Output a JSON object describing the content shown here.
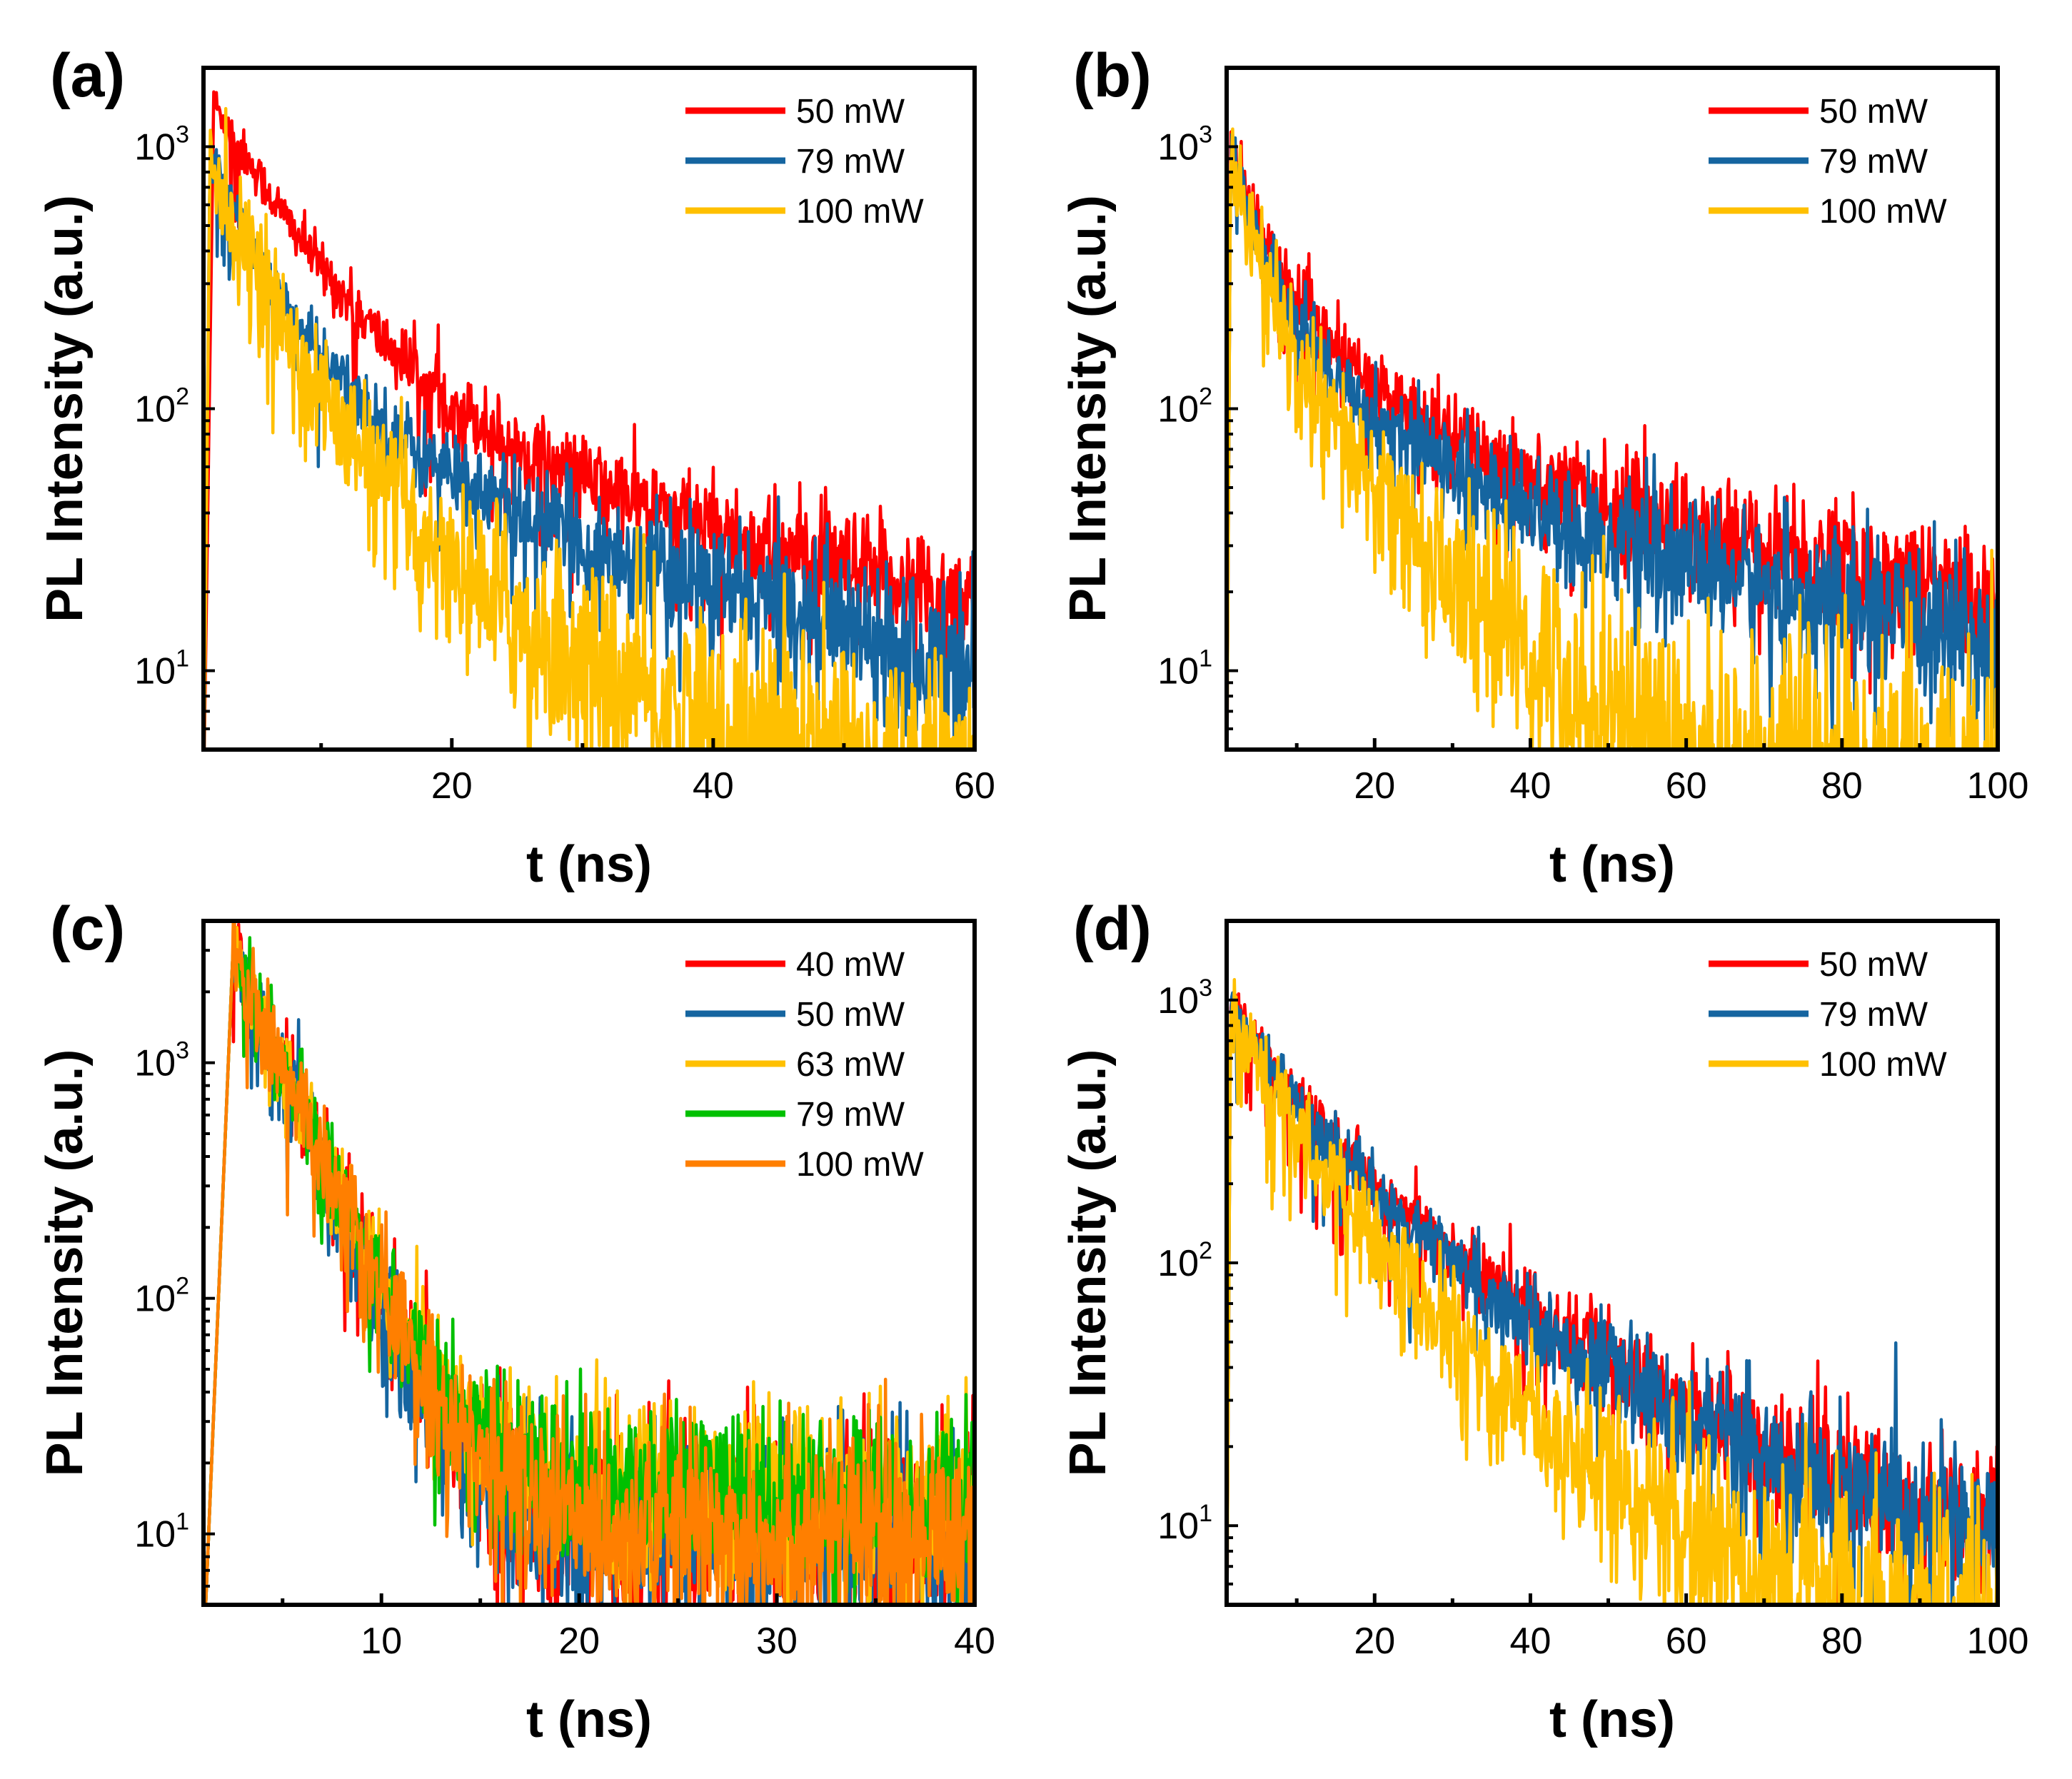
{
  "figure": {
    "background": "#ffffff"
  },
  "chart_data": [
    {
      "panel": "(a)",
      "type": "line",
      "scale_y": "log",
      "xlabel": "t (ns)",
      "ylabel": "PL Intensity (a.u.)",
      "xlim": [
        1,
        60
      ],
      "ylim": [
        5,
        2000
      ],
      "xticks": [
        20,
        40,
        60
      ],
      "yticks": [
        {
          "base": "10",
          "exp": "1",
          "value": 10
        },
        {
          "base": "10",
          "exp": "2",
          "value": 100
        },
        {
          "base": "10",
          "exp": "3",
          "value": 1000
        }
      ],
      "legend_position": "top-right",
      "series": [
        {
          "name": "50 mW",
          "color": "#ff0000",
          "peak_t": 1.8,
          "peak": 1800,
          "components": [
            [
              1200,
              4.5
            ],
            [
              200,
              12
            ],
            [
              60,
              40
            ]
          ],
          "noise": 0.07
        },
        {
          "name": "79 mW",
          "color": "#1565a0",
          "peak_t": 1.5,
          "peak": 950,
          "components": [
            [
              680,
              3.2
            ],
            [
              170,
              9
            ],
            [
              50,
              33
            ]
          ],
          "noise": 0.08
        },
        {
          "name": "100 mW",
          "color": "#ffc000",
          "peak_t": 1.5,
          "peak": 900,
          "components": [
            [
              640,
              3.0
            ],
            [
              190,
              6.5
            ],
            [
              40,
              14
            ]
          ],
          "noise": 0.2
        }
      ]
    },
    {
      "panel": "(b)",
      "type": "line",
      "scale_y": "log",
      "xlabel": "t (ns)",
      "ylabel": "PL Intensity (a.u.)",
      "xlim": [
        1,
        100
      ],
      "ylim": [
        5,
        2000
      ],
      "xticks": [
        20,
        40,
        60,
        80,
        100
      ],
      "yticks": [
        {
          "base": "10",
          "exp": "1",
          "value": 10
        },
        {
          "base": "10",
          "exp": "2",
          "value": 100
        },
        {
          "base": "10",
          "exp": "3",
          "value": 1000
        }
      ],
      "legend_position": "top-right",
      "series": [
        {
          "name": "50 mW",
          "color": "#ff0000",
          "peak_t": 1.5,
          "peak": 1000,
          "components": [
            [
              650,
              3.5
            ],
            [
              250,
              12
            ],
            [
              85,
              58
            ]
          ],
          "noise": 0.09
        },
        {
          "name": "79 mW",
          "color": "#1565a0",
          "peak_t": 1.5,
          "peak": 950,
          "components": [
            [
              650,
              3.2
            ],
            [
              240,
              11
            ],
            [
              70,
              50
            ]
          ],
          "noise": 0.1
        },
        {
          "name": "100 mW",
          "color": "#ffc000",
          "peak_t": 1.5,
          "peak": 900,
          "components": [
            [
              640,
              3.0
            ],
            [
              210,
              9.5
            ],
            [
              40,
              19
            ]
          ],
          "noise": 0.22
        }
      ]
    },
    {
      "panel": "(c)",
      "type": "line",
      "scale_y": "log",
      "xlabel": "t (ns)",
      "ylabel": "PL Intensity (a.u.)",
      "xlim": [
        1,
        40
      ],
      "ylim": [
        5,
        4000
      ],
      "xticks": [
        10,
        20,
        30,
        40
      ],
      "yticks": [
        {
          "base": "10",
          "exp": "1",
          "value": 10
        },
        {
          "base": "10",
          "exp": "2",
          "value": 100
        },
        {
          "base": "10",
          "exp": "3",
          "value": 1000
        }
      ],
      "legend_position": "top-right",
      "series": [
        {
          "name": "40 mW",
          "color": "#ff0000",
          "peak_t": 2.5,
          "peak": 3100,
          "components": [
            [
              2900,
              2.15
            ],
            [
              9,
              200
            ]
          ],
          "noise": 0.22
        },
        {
          "name": "50 mW",
          "color": "#1565a0",
          "peak_t": 2.5,
          "peak": 3100,
          "components": [
            [
              2900,
              2.1
            ],
            [
              8,
              200
            ]
          ],
          "noise": 0.22
        },
        {
          "name": "63 mW",
          "color": "#ffc000",
          "peak_t": 2.5,
          "peak": 3100,
          "components": [
            [
              2900,
              2.25
            ],
            [
              14,
              200
            ]
          ],
          "noise": 0.18
        },
        {
          "name": "79 mW",
          "color": "#00c000",
          "peak_t": 2.5,
          "peak": 3100,
          "components": [
            [
              2900,
              2.25
            ],
            [
              13,
              200
            ]
          ],
          "noise": 0.18
        },
        {
          "name": "100 mW",
          "color": "#ff7f00",
          "peak_t": 2.5,
          "peak": 3100,
          "components": [
            [
              2900,
              2.2
            ],
            [
              8.5,
              200
            ]
          ],
          "noise": 0.22
        }
      ]
    },
    {
      "panel": "(d)",
      "type": "line",
      "scale_y": "log",
      "xlabel": "t (ns)",
      "ylabel": "PL Intensity (a.u.)",
      "xlim": [
        1,
        100
      ],
      "ylim": [
        5,
        2000
      ],
      "xticks": [
        20,
        40,
        60,
        80,
        100
      ],
      "yticks": [
        {
          "base": "10",
          "exp": "1",
          "value": 10
        },
        {
          "base": "10",
          "exp": "2",
          "value": 100
        },
        {
          "base": "10",
          "exp": "3",
          "value": 1000
        }
      ],
      "legend_position": "top-right",
      "series": [
        {
          "name": "50 mW",
          "color": "#ff0000",
          "peak_t": 1.5,
          "peak": 1000,
          "components": [
            [
              500,
              6
            ],
            [
              450,
              17
            ],
            [
              30,
              60
            ]
          ],
          "noise": 0.07
        },
        {
          "name": "79 mW",
          "color": "#1565a0",
          "peak_t": 1.5,
          "peak": 950,
          "components": [
            [
              500,
              6
            ],
            [
              430,
              16.5
            ],
            [
              28,
              60
            ]
          ],
          "noise": 0.07
        },
        {
          "name": "100 mW",
          "color": "#ffc000",
          "peak_t": 1.5,
          "peak": 900,
          "components": [
            [
              500,
              5.5
            ],
            [
              380,
              13
            ],
            [
              12,
              40
            ]
          ],
          "noise": 0.15
        }
      ]
    }
  ]
}
